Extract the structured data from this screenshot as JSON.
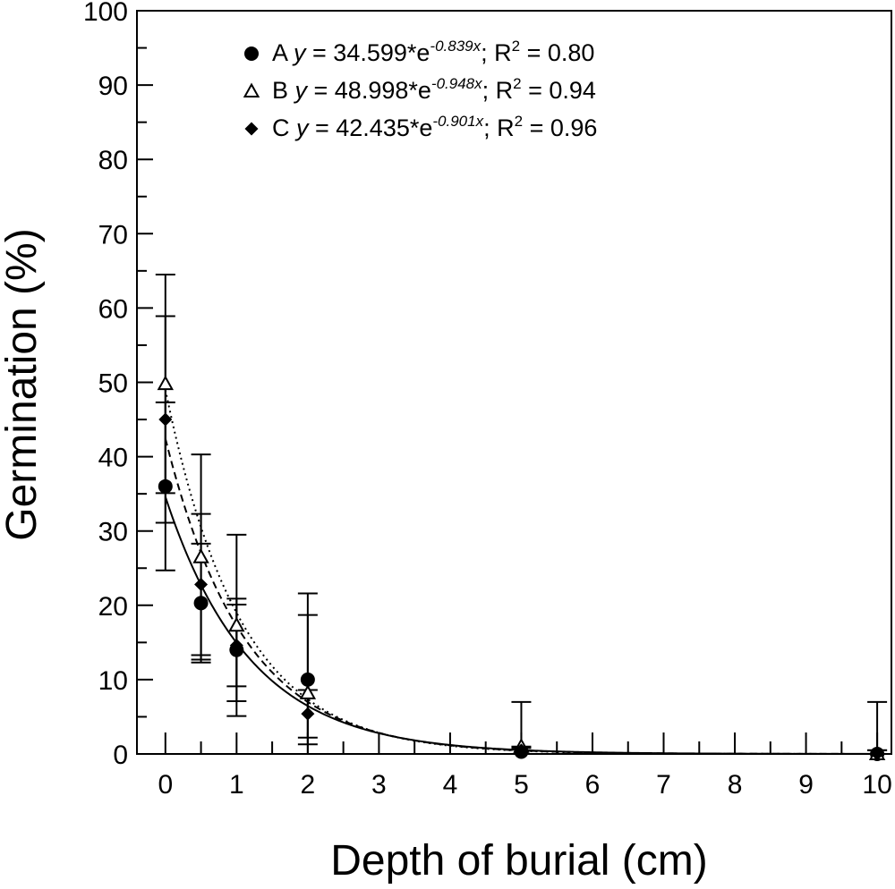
{
  "chart_data": {
    "type": "scatter",
    "xlabel": "Depth of burial (cm)",
    "ylabel": "Germination (%)",
    "xlim": [
      -0.4,
      10.2
    ],
    "ylim": [
      0,
      100
    ],
    "x_ticks": [
      "0",
      "1",
      "2",
      "3",
      "4",
      "5",
      "6",
      "7",
      "8",
      "9",
      "10"
    ],
    "y_ticks": [
      "0",
      "10",
      "20",
      "30",
      "40",
      "50",
      "60",
      "70",
      "80",
      "90",
      "100"
    ],
    "grid": false,
    "legend_position": "top-center",
    "series": [
      {
        "name": "A",
        "marker": "filled-circle",
        "line_style": "solid",
        "equation": {
          "prefix": "y = 34.599*e",
          "exponent": "-0.839x",
          "r2": "0.80"
        },
        "fit": {
          "a": 34.599,
          "b": -0.839
        },
        "points": [
          {
            "x": 0,
            "y": 36,
            "err": 11.3
          },
          {
            "x": 0.5,
            "y": 20.3,
            "err": 8.0
          },
          {
            "x": 1,
            "y": 14,
            "err": 6.9
          },
          {
            "x": 2,
            "y": 10,
            "err": 8.7
          },
          {
            "x": 5,
            "y": 0.3,
            "err": 0.5
          },
          {
            "x": 10,
            "y": 0,
            "err": 0.5
          }
        ]
      },
      {
        "name": "B",
        "marker": "open-triangle",
        "line_style": "dotted",
        "equation": {
          "prefix": "y = 48.998*e",
          "exponent": "-0.948x",
          "r2": "0.94"
        },
        "fit": {
          "a": 48.998,
          "b": -0.948
        },
        "points": [
          {
            "x": 0,
            "y": 49.8,
            "err": 14.7
          },
          {
            "x": 0.5,
            "y": 26.5,
            "err": 13.8
          },
          {
            "x": 1,
            "y": 17.3,
            "err": 12.2
          },
          {
            "x": 2,
            "y": 8.2,
            "err": 13.4
          },
          {
            "x": 5,
            "y": 1.0,
            "err": 6.0
          },
          {
            "x": 10,
            "y": 0,
            "err": 7.0
          }
        ]
      },
      {
        "name": "C",
        "marker": "filled-diamond",
        "line_style": "dashed",
        "equation": {
          "prefix": "y = 42.435*e",
          "exponent": "-0.901x",
          "r2": "0.96"
        },
        "fit": {
          "a": 42.435,
          "b": -0.901
        },
        "points": [
          {
            "x": 0,
            "y": 45,
            "err": 13.9
          },
          {
            "x": 0.5,
            "y": 22.8,
            "err": 9.5
          },
          {
            "x": 1,
            "y": 14.6,
            "err": 5.5
          },
          {
            "x": 2,
            "y": 5.4,
            "err": 3.2
          },
          {
            "x": 5,
            "y": 0.5,
            "err": 0.5
          },
          {
            "x": 10,
            "y": 0,
            "err": 0.5
          }
        ]
      }
    ]
  }
}
